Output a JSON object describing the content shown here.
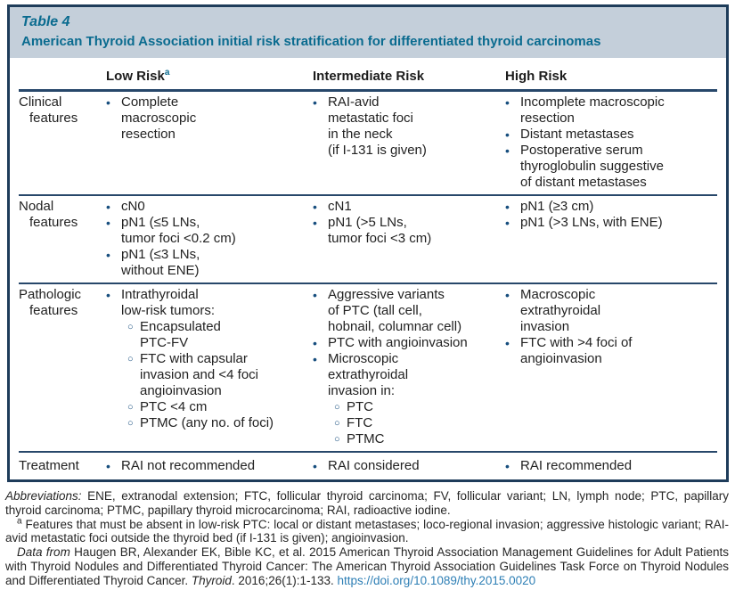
{
  "colors": {
    "accent_teal": "#0a6b8f",
    "header_band_bg": "#c4cfda",
    "frame_border": "#1e3c5a",
    "row_line": "#27476a",
    "bullet_blue": "#174e7e",
    "link_blue": "#2e7fb5"
  },
  "icons": {
    "bullet": "•",
    "sub_bullet": "○"
  },
  "table": {
    "label": "Table 4",
    "title": "American Thyroid Association initial risk stratification for differentiated thyroid carcinomas",
    "columns": [
      {
        "label": "Low Risk",
        "superscript": "a"
      },
      {
        "label": "Intermediate Risk",
        "superscript": ""
      },
      {
        "label": "High Risk",
        "superscript": ""
      }
    ],
    "rows": [
      {
        "label": "Clinical features",
        "cells": [
          {
            "items": [
              {
                "text": "Complete\nmacroscopic\nresection"
              }
            ]
          },
          {
            "items": [
              {
                "text": "RAI-avid\nmetastatic foci\nin the neck\n(if I-131 is given)"
              }
            ]
          },
          {
            "items": [
              {
                "text": "Incomplete macroscopic\nresection"
              },
              {
                "text": "Distant metastases"
              },
              {
                "text": "Postoperative serum\nthyroglobulin suggestive\nof distant metastases"
              }
            ]
          }
        ]
      },
      {
        "label": "Nodal features",
        "cells": [
          {
            "items": [
              {
                "text": "cN0"
              },
              {
                "text": "pN1 (≤5 LNs,\ntumor foci <0.2 cm)"
              },
              {
                "text": "pN1 (≤3 LNs,\nwithout ENE)"
              }
            ]
          },
          {
            "items": [
              {
                "text": "cN1"
              },
              {
                "text": "pN1 (>5 LNs,\ntumor foci <3 cm)"
              }
            ]
          },
          {
            "items": [
              {
                "text": "pN1 (≥3 cm)"
              },
              {
                "text": "pN1 (>3 LNs, with ENE)"
              }
            ]
          }
        ]
      },
      {
        "label": "Pathologic features",
        "cells": [
          {
            "items": [
              {
                "text": "Intrathyroidal\nlow-risk tumors:",
                "sub": [
                  {
                    "text": "Encapsulated\nPTC-FV"
                  },
                  {
                    "text": "FTC with capsular\ninvasion and <4 foci\nangioinvasion"
                  },
                  {
                    "text": "PTC <4 cm"
                  },
                  {
                    "text": "PTMC (any no. of foci)"
                  }
                ]
              }
            ]
          },
          {
            "items": [
              {
                "text": "Aggressive variants\nof PTC (tall cell,\nhobnail, columnar cell)"
              },
              {
                "text": "PTC with angioinvasion"
              },
              {
                "text": "Microscopic\nextrathyroidal\ninvasion in:",
                "sub": [
                  {
                    "text": "PTC"
                  },
                  {
                    "text": "FTC"
                  },
                  {
                    "text": "PTMC"
                  }
                ]
              }
            ]
          },
          {
            "items": [
              {
                "text": "Macroscopic\nextrathyroidal\ninvasion"
              },
              {
                "text": "FTC with >4 foci of\nangioinvasion"
              }
            ]
          }
        ]
      },
      {
        "label": "Treatment",
        "cells": [
          {
            "items": [
              {
                "text": "RAI not recommended"
              }
            ]
          },
          {
            "items": [
              {
                "text": "RAI considered"
              }
            ]
          },
          {
            "items": [
              {
                "text": "RAI recommended"
              }
            ]
          }
        ]
      }
    ]
  },
  "footer": {
    "abbreviations_label": "Abbreviations:",
    "abbreviations_text": "ENE, extranodal extension; FTC, follicular thyroid carcinoma; FV, follicular variant; LN, lymph node; PTC, papillary thyroid carcinoma; PTMC, papillary thyroid microcarcinoma; RAI, radioactive iodine.",
    "footnote_marker": "a",
    "footnote_text": "Features that must be absent in low-risk PTC: local or distant metastases; loco-regional invasion; aggressive histologic variant; RAI-avid metastatic foci outside the thyroid bed (if I-131 is given); angioinvasion.",
    "data_from_label": "Data from",
    "citation_before_journal": "Haugen BR, Alexander EK, Bible KC, et al. 2015 American Thyroid Association Management Guidelines for Adult Patients with Thyroid Nodules and Differentiated Thyroid Cancer: The American Thyroid Association Guidelines Task Force on Thyroid Nodules and Differentiated Thyroid Cancer.",
    "journal": "Thyroid",
    "citation_after_journal": ". 2016;26(1):1-133.",
    "doi_link": "https://doi.org/10.1089/thy.2015.0020"
  }
}
